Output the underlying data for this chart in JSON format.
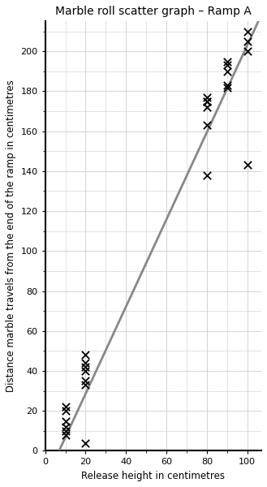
{
  "title": "Marble roll scatter graph – Ramp A",
  "xlabel": "Release height in centimetres",
  "ylabel": "Distance marble travels from the end of the ramp in centimetres",
  "scatter_x": [
    10,
    10,
    10,
    10,
    10,
    10,
    20,
    20,
    20,
    20,
    20,
    20,
    20,
    80,
    80,
    80,
    80,
    80,
    80,
    90,
    90,
    90,
    90,
    90,
    100,
    100,
    100,
    100
  ],
  "scatter_y": [
    15,
    20,
    22,
    12,
    10,
    8,
    48,
    44,
    42,
    40,
    35,
    33,
    4,
    175,
    177,
    175,
    172,
    163,
    138,
    193,
    190,
    195,
    183,
    182,
    210,
    205,
    200,
    143
  ],
  "trend_slope": 2.18,
  "trend_intercept": -15,
  "trend_color": "#888888",
  "scatter_color": "#000000",
  "xlim": [
    0,
    107
  ],
  "ylim": [
    0,
    215
  ],
  "xticks": [
    0,
    20,
    40,
    60,
    80,
    100
  ],
  "yticks": [
    0,
    20,
    40,
    60,
    80,
    100,
    120,
    140,
    160,
    180,
    200
  ],
  "grid_color": "#cccccc",
  "bg_color": "#ffffff",
  "title_fontsize": 10,
  "label_fontsize": 8.5,
  "tick_fontsize": 8
}
